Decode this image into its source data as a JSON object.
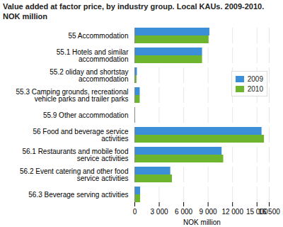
{
  "chart_data": {
    "type": "bar",
    "title": "Value added at factor price, by industry group. Local KAUs. 2009-2010. NOK million",
    "orientation": "horizontal",
    "categories": [
      "55 Accommodation",
      "55.1 Hotels and similar accommodation",
      "55.2 oliday and shortstay accommodation",
      "55.3 Camping grounds, recreational vehicle parks and trailer parks",
      "55.9 Other accommodation",
      "56 Food and beverage service activities",
      "56.1 Restaurants and mobile food service activities",
      "56.2 Event catering and other food service activities",
      "56.3 Beverage serving activities"
    ],
    "series": [
      {
        "name": "2009",
        "color": "#3a8fd8",
        "values": [
          9200,
          8300,
          300,
          650,
          30,
          15600,
          10700,
          4400,
          700
        ]
      },
      {
        "name": "2010",
        "color": "#6cb52d",
        "values": [
          9100,
          8300,
          250,
          650,
          30,
          15900,
          10900,
          4600,
          700
        ]
      }
    ],
    "xlabel": "NOK million",
    "xlim": [
      0,
      16500
    ],
    "xticks": [
      0,
      {
        "value": 3000,
        "label": "3 000"
      },
      {
        "value": 6000,
        "label": "6 000"
      },
      {
        "value": 9000,
        "label": "9 000"
      },
      {
        "value": 12000,
        "label": "12 000"
      },
      {
        "value": 16500,
        "label": "16 500"
      },
      {
        "value": 15000,
        "label": "15 000"
      }
    ],
    "grid": true,
    "legend": "upper right"
  }
}
